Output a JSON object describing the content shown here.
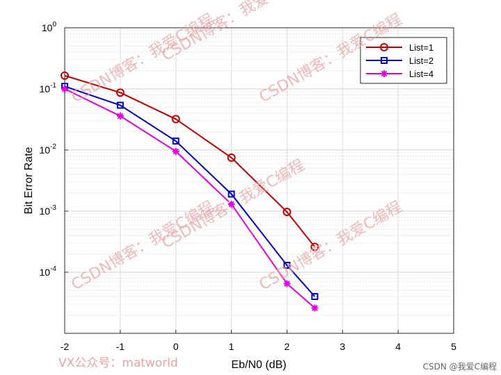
{
  "chart_data": {
    "type": "line",
    "xlabel": "Eb/N0 (dB)",
    "ylabel": "Bit Error Rate",
    "xlim": [
      -2,
      5
    ],
    "ylim": [
      1e-05,
      1
    ],
    "yscale": "log",
    "grid": true,
    "legend_position": "top-right",
    "x_ticks": [
      "-2",
      "-1",
      "0",
      "1",
      "2",
      "3",
      "4",
      "5"
    ],
    "y_tick_mantissa": "10",
    "y_tick_exponents": [
      "0",
      "-1",
      "-2",
      "-3",
      "-4"
    ],
    "series": [
      {
        "name": "List=1",
        "color": "#c00000",
        "marker": "circle",
        "x": [
          -2,
          -1,
          0,
          1,
          2,
          2.5
        ],
        "y": [
          0.165,
          0.087,
          0.032,
          0.0075,
          0.00097,
          0.00026
        ]
      },
      {
        "name": "List=2",
        "color": "#0000c0",
        "marker": "square",
        "x": [
          -2,
          -1,
          0,
          1,
          2,
          2.5
        ],
        "y": [
          0.11,
          0.054,
          0.014,
          0.0019,
          0.00013,
          4e-05
        ]
      },
      {
        "name": "List=4",
        "color": "#e000e0",
        "marker": "star",
        "x": [
          -2,
          -1,
          0,
          1,
          2,
          2.5
        ],
        "y": [
          0.1,
          0.036,
          0.0095,
          0.0013,
          6.5e-05,
          2.6e-05
        ]
      }
    ]
  },
  "watermarks": [
    "CSDN博客：我爱C编程",
    "CSDN博客：我爱C编程",
    "CSDN博客：我爱C编程",
    "CSDN博客：我爱C编程",
    "CSDN博客：我爱C编程",
    "CSDN博客：我爱C编程"
  ],
  "footer": {
    "left": "VX公众号：matworld",
    "right": "CSDN @我爱C编程"
  }
}
